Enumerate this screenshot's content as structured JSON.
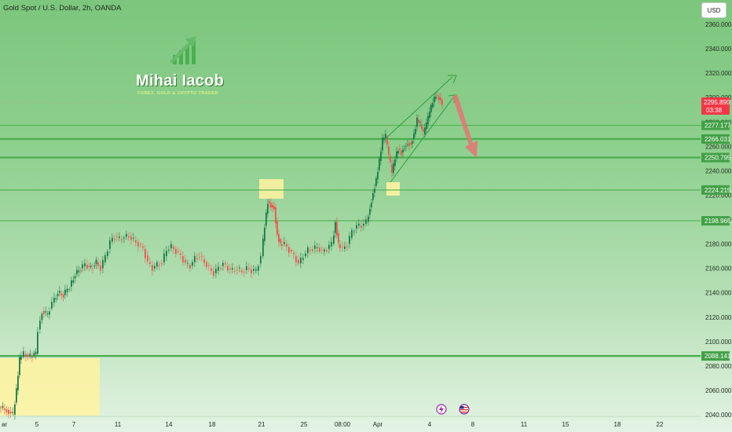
{
  "header": {
    "title": "Gold Spot / U.S. Dollar, 2h, OANDA",
    "currency_button": "USD"
  },
  "logo": {
    "name": "Mihai Iacob",
    "tagline": "FOREX, GOLD & CRYPTO TRADER",
    "icon": "growth-arrow-chart-icon"
  },
  "price_axis": {
    "ticks": [
      "2360.000",
      "2340.000",
      "2320.000",
      "2300.000",
      "2280.000",
      "2260.000",
      "2240.000",
      "2220.000",
      "2200.000",
      "2180.000",
      "2160.000",
      "2140.000",
      "2120.000",
      "2100.000",
      "2080.000",
      "2060.000",
      "2040.000"
    ]
  },
  "time_axis": {
    "labels": [
      "ar",
      "5",
      "7",
      "11",
      "14",
      "18",
      "21",
      "25",
      "08:00",
      "Apr",
      "4",
      "8",
      "11",
      "15",
      "18",
      "22"
    ]
  },
  "current_price": {
    "value": "2295.890",
    "countdown": "03:38",
    "color": "#f23645"
  },
  "levels": [
    {
      "label": "2277.177",
      "price": 2277.177
    },
    {
      "label": "2266.031",
      "price": 2266.031
    },
    {
      "label": "2250.795",
      "price": 2250.795
    },
    {
      "label": "2224.215",
      "price": 2224.215
    },
    {
      "label": "2198.965",
      "price": 2198.965
    },
    {
      "label": "2088.141",
      "price": 2088.141
    }
  ],
  "colors": {
    "level_line": "#4caf50",
    "level_badge": "#43a047",
    "candle_up": "#1a7a4a",
    "candle_down": "#ef5350",
    "highlight": "#fff3a0",
    "forecast_arrow": "#e57373"
  },
  "event_icons": [
    "lightning-icon",
    "us-flag-icon"
  ],
  "chart_data": {
    "type": "candlestick",
    "symbol": "Gold Spot / U.S. Dollar",
    "timeframe": "2h",
    "ylim": [
      2035,
      2370
    ],
    "horizontal_levels": [
      2277.177,
      2266.031,
      2250.795,
      2224.215,
      2198.965,
      2088.141
    ],
    "last_price": 2295.89,
    "annotations": [
      "ascending channel",
      "bearish forecast arrow toward 2250.795"
    ]
  }
}
